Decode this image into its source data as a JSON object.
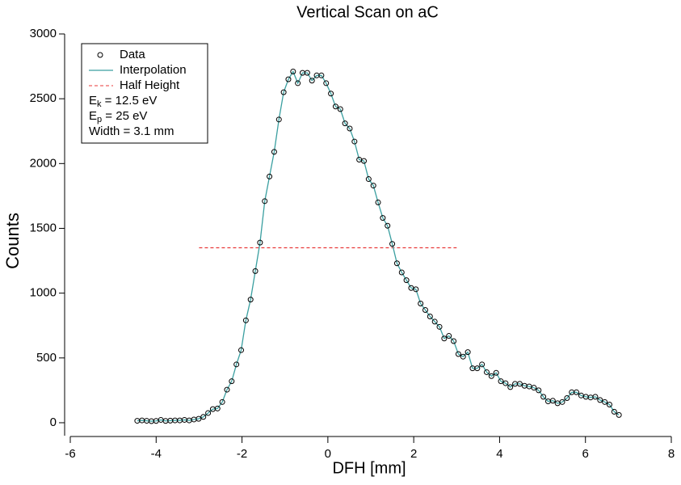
{
  "chart_data": {
    "type": "scatter",
    "title": "Vertical Scan on aC",
    "x_label": "DFH [mm]",
    "y_label": "Counts",
    "x_start": -4.44,
    "x_step": 0.11,
    "series": [
      {
        "name": "Data",
        "color": "#000000",
        "marker": "circle",
        "values": [
          15,
          18,
          15,
          12,
          14,
          22,
          14,
          16,
          18,
          18,
          22,
          18,
          25,
          30,
          45,
          75,
          105,
          110,
          160,
          255,
          320,
          450,
          560,
          790,
          950,
          1170,
          1390,
          1710,
          1900,
          2090,
          2340,
          2550,
          2650,
          2710,
          2620,
          2700,
          2700,
          2640,
          2680,
          2680,
          2620,
          2540,
          2440,
          2420,
          2310,
          2270,
          2170,
          2030,
          2020,
          1880,
          1830,
          1700,
          1580,
          1520,
          1380,
          1230,
          1160,
          1100,
          1040,
          1030,
          920,
          870,
          820,
          780,
          740,
          650,
          670,
          630,
          530,
          510,
          545,
          420,
          420,
          450,
          390,
          360,
          385,
          320,
          305,
          275,
          300,
          300,
          285,
          280,
          270,
          250,
          200,
          165,
          170,
          150,
          160,
          190,
          235,
          235,
          210,
          200,
          195,
          200,
          175,
          160,
          140,
          85,
          60
        ]
      },
      {
        "name": "Interpolation",
        "color": "#3a9fa0"
      },
      {
        "name": "Half Height",
        "color": "#e83a3a",
        "x": [
          -3,
          3
        ],
        "values": [
          1350,
          1350
        ]
      }
    ],
    "annotations": [
      {
        "main": "E",
        "sub": "k",
        "rest": " = 12.5 eV"
      },
      {
        "main": "E",
        "sub": "p",
        "rest": " = 25 eV"
      },
      {
        "main": "Width = 3.1 mm"
      }
    ],
    "xlim": [
      -6,
      8
    ],
    "xticks": [
      -6,
      -4,
      -2,
      0,
      2,
      4,
      6,
      8
    ],
    "ylim": [
      -100,
      3000
    ],
    "yticks": [
      0,
      500,
      1000,
      1500,
      2000,
      2500,
      3000
    ]
  }
}
